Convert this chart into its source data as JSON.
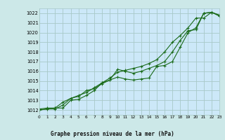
{
  "title": "Graphe pression niveau de la mer (hPa)",
  "bg_color": "#cce8e8",
  "plot_bg_color": "#cce8f8",
  "line_color": "#1a6b1a",
  "grid_color": "#a8c8c8",
  "xmin": 0,
  "xmax": 23,
  "ymin": 1011.5,
  "ymax": 1022.5,
  "yticks": [
    1012,
    1013,
    1014,
    1015,
    1016,
    1017,
    1018,
    1019,
    1020,
    1021,
    1022
  ],
  "xticks": [
    0,
    1,
    2,
    3,
    4,
    5,
    6,
    7,
    8,
    9,
    10,
    11,
    12,
    13,
    14,
    15,
    16,
    17,
    18,
    19,
    20,
    21,
    22,
    23
  ],
  "line1_x": [
    0,
    1,
    2,
    3,
    4,
    5,
    6,
    7,
    8,
    9,
    10,
    11,
    12,
    13,
    14,
    15,
    16,
    17,
    18,
    19,
    20,
    21,
    22,
    23
  ],
  "line1_y": [
    1012.1,
    1012.2,
    1012.2,
    1012.2,
    1013.0,
    1013.1,
    1013.5,
    1014.0,
    1014.8,
    1015.1,
    1016.2,
    1016.0,
    1015.8,
    1016.0,
    1016.3,
    1016.6,
    1017.0,
    1018.0,
    1019.2,
    1020.2,
    1020.3,
    1022.0,
    1022.1,
    1021.8
  ],
  "line2_x": [
    0,
    1,
    2,
    3,
    4,
    5,
    6,
    7,
    8,
    9,
    10,
    11,
    12,
    13,
    14,
    15,
    16,
    17,
    18,
    19,
    20,
    21,
    22,
    23
  ],
  "line2_y": [
    1012.0,
    1012.1,
    1012.1,
    1012.5,
    1013.2,
    1013.4,
    1014.0,
    1014.2,
    1014.7,
    1015.1,
    1015.4,
    1015.2,
    1015.1,
    1015.2,
    1015.3,
    1016.5,
    1016.6,
    1017.0,
    1018.5,
    1020.0,
    1020.5,
    1022.0,
    1022.1,
    1021.7
  ],
  "line3_x": [
    0,
    2,
    3,
    4,
    5,
    6,
    7,
    8,
    9,
    10,
    11,
    12,
    13,
    14,
    15,
    16,
    17,
    18,
    19,
    20,
    21,
    22,
    23
  ],
  "line3_y": [
    1012.0,
    1012.2,
    1012.8,
    1013.2,
    1013.5,
    1013.8,
    1014.3,
    1014.8,
    1015.3,
    1015.9,
    1016.1,
    1016.3,
    1016.5,
    1016.8,
    1017.2,
    1018.0,
    1019.0,
    1019.7,
    1020.5,
    1021.5,
    1021.5,
    1022.1,
    1021.8
  ]
}
